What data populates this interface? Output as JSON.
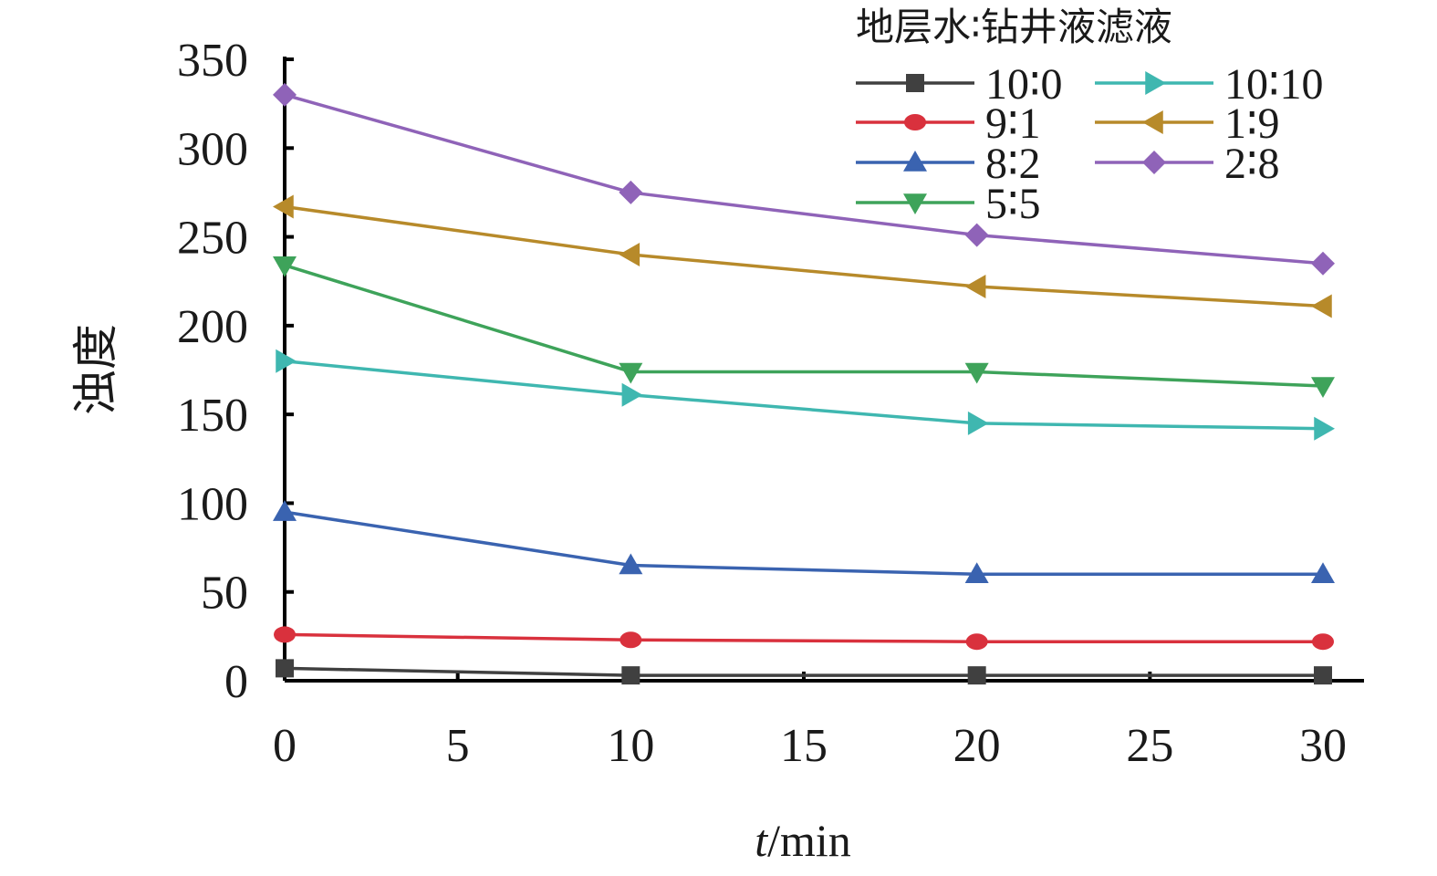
{
  "chart_data": {
    "type": "line",
    "xlabel_italic": "t",
    "xlabel_rest": "/min",
    "ylabel": "浊度",
    "legend_title": "地层水∶钻井液滤液",
    "x": [
      0,
      10,
      20,
      30
    ],
    "xlim": [
      0,
      32
    ],
    "ylim": [
      0,
      350
    ],
    "xticks": [
      "0",
      "5",
      "10",
      "15",
      "20",
      "25",
      "30"
    ],
    "xtick_values": [
      0,
      5,
      10,
      15,
      20,
      25,
      30
    ],
    "yticks": [
      "0",
      "50",
      "100",
      "150",
      "200",
      "250",
      "300",
      "350"
    ],
    "ytick_values": [
      0,
      50,
      100,
      150,
      200,
      250,
      300,
      350
    ],
    "grid": false,
    "legend_position": "top-right",
    "series": [
      {
        "name": "10∶0",
        "marker": "square",
        "color": "#404040",
        "values": [
          7,
          3,
          3,
          3
        ]
      },
      {
        "name": "9∶1",
        "marker": "circle",
        "color": "#d9313d",
        "values": [
          26,
          23,
          22,
          22
        ]
      },
      {
        "name": "8∶2",
        "marker": "triangle-up",
        "color": "#3a63b0",
        "values": [
          95,
          65,
          60,
          60
        ]
      },
      {
        "name": "5∶5",
        "marker": "triangle-down",
        "color": "#3ea35a",
        "values": [
          234,
          174,
          174,
          166
        ]
      },
      {
        "name": "10∶10",
        "marker": "triangle-right",
        "color": "#3fb7b0",
        "values": [
          180,
          161,
          145,
          142
        ]
      },
      {
        "name": "1∶9",
        "marker": "triangle-left",
        "color": "#b78a2a",
        "values": [
          267,
          240,
          222,
          211
        ]
      },
      {
        "name": "2∶8",
        "marker": "diamond",
        "color": "#8f63b8",
        "values": [
          330,
          275,
          251,
          235
        ]
      }
    ]
  }
}
